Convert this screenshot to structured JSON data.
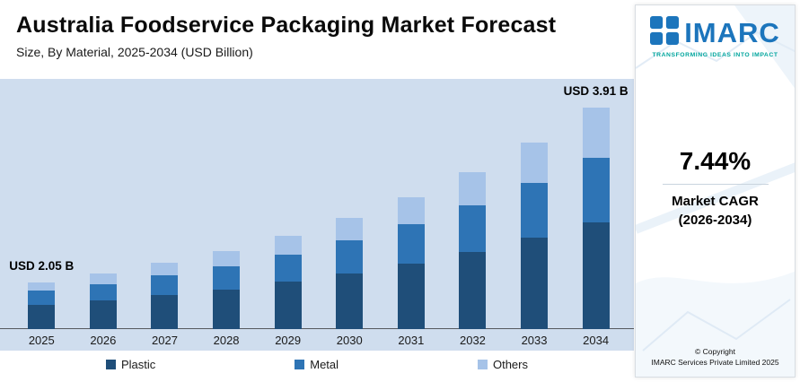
{
  "header": {
    "title": "Australia Foodservice Packaging Market Forecast",
    "subtitle": "Size, By Material, 2025-2034 (USD Billion)"
  },
  "chart_data": {
    "type": "bar",
    "stacked": true,
    "unit": "USD Billion",
    "categories": [
      "2025",
      "2026",
      "2027",
      "2028",
      "2029",
      "2030",
      "2031",
      "2032",
      "2033",
      "2034"
    ],
    "series": [
      {
        "name": "Plastic",
        "color": "#1f4e79",
        "values": [
          1.07,
          1.14,
          1.21,
          1.29,
          1.38,
          1.47,
          1.57,
          1.67,
          1.78,
          1.88
        ]
      },
      {
        "name": "Metal",
        "color": "#2e74b5",
        "values": [
          0.61,
          0.65,
          0.7,
          0.75,
          0.81,
          0.87,
          0.93,
          1.0,
          1.08,
          1.15
        ]
      },
      {
        "name": "Others",
        "color": "#a6c3e8",
        "values": [
          0.37,
          0.41,
          0.45,
          0.5,
          0.54,
          0.59,
          0.65,
          0.71,
          0.78,
          0.88
        ]
      }
    ],
    "totals": [
      2.05,
      2.2,
      2.36,
      2.54,
      2.73,
      2.93,
      3.15,
      3.38,
      3.64,
      3.91
    ],
    "annotations": [
      {
        "index": 0,
        "text": "USD 2.05 B"
      },
      {
        "index": 9,
        "text": "USD 3.91 B"
      }
    ],
    "legend_position": "bottom",
    "xlabel": "",
    "ylabel": "USD Billion"
  },
  "sidebar": {
    "logo_text": "IMARC",
    "tagline": "TRANSFORMING IDEAS INTO IMPACT",
    "cagr_value": "7.44%",
    "cagr_label_line1": "Market CAGR",
    "cagr_label_line2": "(2026-2034)",
    "copyright_line1": "© Copyright",
    "copyright_line2": "IMARC Services Private Limited 2025"
  },
  "colors": {
    "chart_background": "#cfddee",
    "plastic": "#1f4e79",
    "metal": "#2e74b5",
    "others": "#a6c3e8",
    "logo_blue": "#1c75bc",
    "tagline_teal": "#00a59d"
  }
}
